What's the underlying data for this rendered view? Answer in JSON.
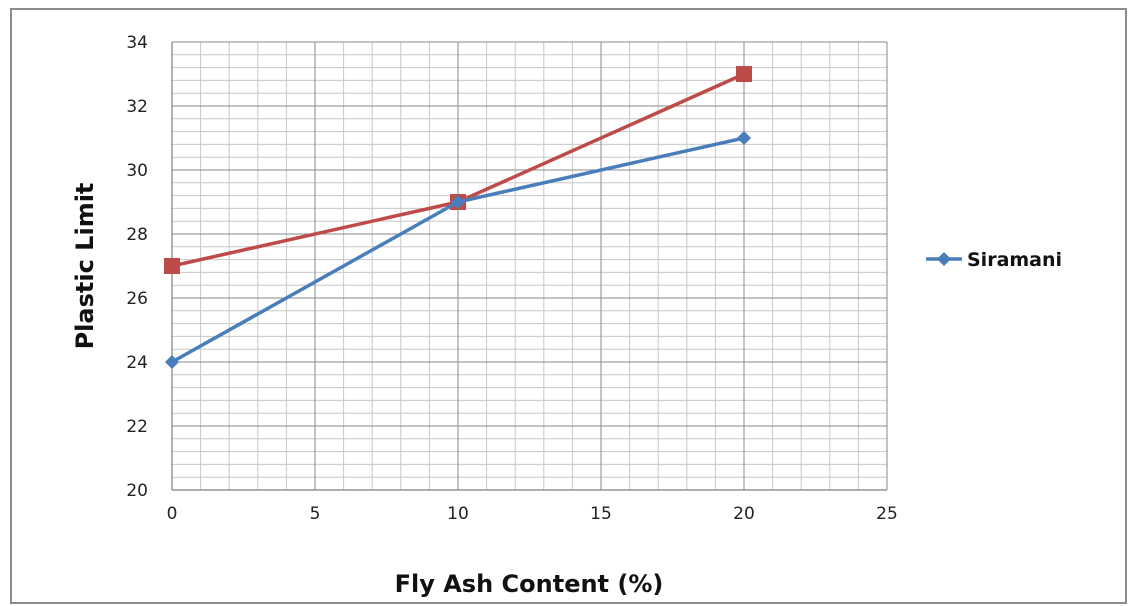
{
  "chart_data": {
    "type": "line",
    "xlabel": "Fly Ash Content (%)",
    "ylabel": "Plastic Limit",
    "xlim": [
      0,
      25
    ],
    "ylim": [
      20,
      34
    ],
    "x_ticks": [
      0,
      5,
      10,
      15,
      20,
      25
    ],
    "y_ticks": [
      20,
      22,
      24,
      26,
      28,
      30,
      32,
      34
    ],
    "grid": true,
    "legend_position": "right",
    "series": [
      {
        "name": "Siramani",
        "color": "#4a7ebb",
        "marker": "diamond",
        "x": [
          0,
          10,
          20
        ],
        "y": [
          24,
          29,
          31
        ]
      },
      {
        "color": "#be4b48",
        "marker": "square",
        "x": [
          0,
          10,
          20
        ],
        "y": [
          27,
          29,
          33
        ]
      }
    ]
  }
}
